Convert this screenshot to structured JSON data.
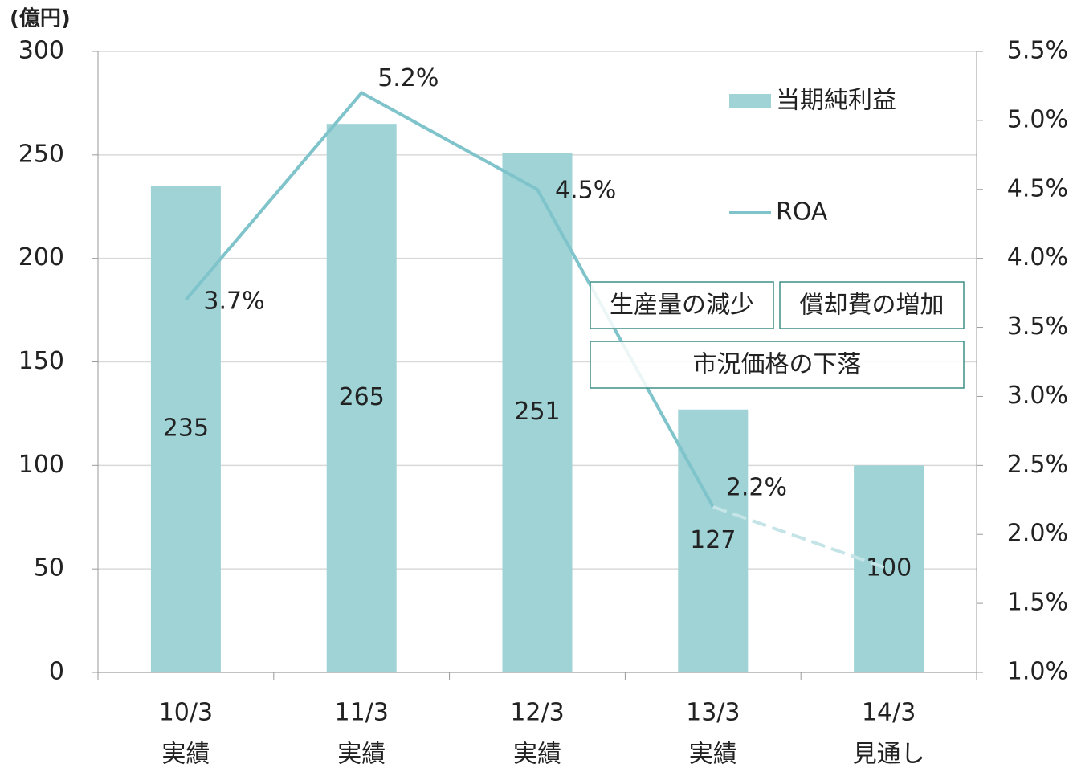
{
  "chart_data": {
    "type": "bar_line",
    "y_unit_label": "(億円)",
    "categories": [
      "10/3",
      "11/3",
      "12/3",
      "13/3",
      "14/3"
    ],
    "category_sublabels": [
      "実績",
      "実績",
      "実績",
      "実績",
      "見通し"
    ],
    "series": [
      {
        "name": "当期純利益",
        "type": "bar",
        "color": "#9fd3d6",
        "values": [
          235,
          265,
          251,
          127,
          100
        ]
      },
      {
        "name": "ROA",
        "type": "line",
        "axis": "y2",
        "color": "#7fc3cb",
        "forecast_color": "#c4e4e7",
        "forecast_dashed_last_segment": true,
        "values": [
          3.7,
          5.2,
          4.5,
          2.2,
          1.75
        ],
        "value_labels": [
          "3.7%",
          "5.2%",
          "4.5%",
          "2.2%",
          null
        ]
      }
    ],
    "ylim": [
      0,
      300
    ],
    "yticks": [
      0,
      50,
      100,
      150,
      200,
      250,
      300
    ],
    "y2lim": [
      1.0,
      5.5
    ],
    "y2ticks": [
      {
        "value": 1.0,
        "label": "1.0%"
      },
      {
        "value": 1.5,
        "label": "1.5%"
      },
      {
        "value": 2.0,
        "label": "2.0%"
      },
      {
        "value": 2.5,
        "label": "2.5%"
      },
      {
        "value": 3.0,
        "label": "3.0%"
      },
      {
        "value": 3.5,
        "label": "3.5%"
      },
      {
        "value": 4.0,
        "label": "4.0%"
      },
      {
        "value": 4.5,
        "label": "4.5%"
      },
      {
        "value": 5.0,
        "label": "5.0%"
      },
      {
        "value": 5.5,
        "label": "5.5%"
      }
    ],
    "grid": true,
    "annotations": [
      "生産量の減少",
      "償却費の増加",
      "市況価格の下落"
    ]
  }
}
